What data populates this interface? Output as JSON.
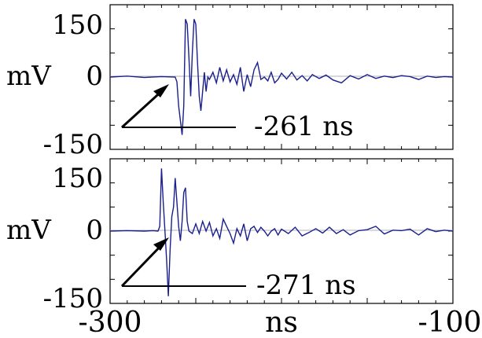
{
  "chart_data": [
    {
      "type": "line",
      "title": "",
      "ylabel": "mV",
      "xlabel": "",
      "ylim": [
        -150,
        150
      ],
      "xlim": [
        -300,
        -100
      ],
      "yticks": [
        "150",
        "0",
        "-150"
      ],
      "grid": false,
      "annotation": "-261 ns",
      "annotation_x": -261,
      "series": [
        {
          "color": "#1a1f8c",
          "x": [
            -300,
            -290,
            -280,
            -270,
            -262,
            -261,
            -260,
            -258,
            -257,
            -256,
            -255,
            -254,
            -253,
            -252,
            -251,
            -250,
            -249,
            -248,
            -247,
            -246,
            -245,
            -244,
            -243,
            -242,
            -240,
            -238,
            -236,
            -234,
            -232,
            -230,
            -228,
            -226,
            -224,
            -222,
            -220,
            -218,
            -216,
            -214,
            -212,
            -210,
            -208,
            -206,
            -204,
            -202,
            -200,
            -197,
            -194,
            -191,
            -188,
            -185,
            -182,
            -178,
            -174,
            -170,
            -165,
            -160,
            -155,
            -150,
            -145,
            -140,
            -135,
            -130,
            -125,
            -120,
            -115,
            -110,
            -105,
            -100
          ],
          "y": [
            0,
            2,
            -1,
            1,
            0,
            -10,
            -60,
            -120,
            -60,
            120,
            110,
            40,
            -40,
            50,
            120,
            110,
            30,
            -40,
            -70,
            -30,
            10,
            -30,
            0,
            -5,
            10,
            -12,
            20,
            -8,
            15,
            -10,
            5,
            -15,
            20,
            -30,
            5,
            -20,
            15,
            30,
            -5,
            0,
            -8,
            10,
            -12,
            -5,
            8,
            -4,
            10,
            -6,
            3,
            -8,
            5,
            -3,
            4,
            -6,
            -12,
            3,
            -4,
            5,
            -3,
            2,
            -1,
            3,
            1,
            -5,
            2,
            -1,
            1,
            0
          ]
        }
      ]
    },
    {
      "type": "line",
      "title": "",
      "ylabel": "mV",
      "xlabel": "ns",
      "ylim": [
        -150,
        150
      ],
      "xlim": [
        -300,
        -100
      ],
      "xticks": [
        "-300",
        "ns",
        "-100"
      ],
      "yticks": [
        "150",
        "0",
        "-150"
      ],
      "grid": false,
      "annotation": "-271 ns",
      "annotation_x": -271,
      "series": [
        {
          "color": "#1a1f8c",
          "x": [
            -300,
            -290,
            -280,
            -275,
            -272,
            -271,
            -270,
            -269,
            -268,
            -267,
            -266,
            -265,
            -264,
            -263,
            -262,
            -261,
            -260,
            -259,
            -258,
            -257,
            -256,
            -255,
            -254,
            -252,
            -250,
            -248,
            -246,
            -244,
            -242,
            -240,
            -238,
            -236,
            -234,
            -232,
            -230,
            -228,
            -226,
            -224,
            -222,
            -220,
            -218,
            -216,
            -214,
            -212,
            -210,
            -208,
            -206,
            -204,
            -202,
            -200,
            -196,
            -192,
            -188,
            -184,
            -180,
            -176,
            -172,
            -168,
            -164,
            -160,
            -155,
            -150,
            -145,
            -140,
            -135,
            -130,
            -125,
            -120,
            -115,
            -110,
            -105,
            -100
          ],
          "y": [
            0,
            1,
            0,
            1,
            0,
            10,
            130,
            60,
            0,
            -60,
            -135,
            -40,
            30,
            50,
            110,
            60,
            10,
            -20,
            20,
            80,
            90,
            20,
            0,
            -5,
            15,
            -5,
            20,
            0,
            18,
            -10,
            5,
            -15,
            25,
            10,
            -5,
            -25,
            5,
            -10,
            15,
            -20,
            5,
            10,
            -3,
            8,
            0,
            -10,
            0,
            5,
            -8,
            4,
            -5,
            8,
            -10,
            -3,
            5,
            -4,
            8,
            -5,
            3,
            -8,
            1,
            3,
            10,
            -6,
            2,
            1,
            4,
            -8,
            5,
            -1,
            2,
            0
          ]
        }
      ]
    }
  ]
}
